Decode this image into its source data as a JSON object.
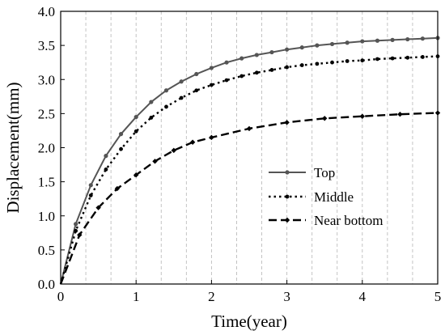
{
  "chart_data": {
    "type": "line",
    "title": "",
    "xlabel": "Time(year)",
    "ylabel": "Displacement(mm)",
    "xlim": [
      0,
      5
    ],
    "ylim": [
      0,
      4
    ],
    "xticks": [
      "0",
      "1",
      "2",
      "3",
      "4",
      "5"
    ],
    "yticks": [
      "0.0",
      "0.5",
      "1.0",
      "1.5",
      "2.0",
      "2.5",
      "3.0",
      "3.5",
      "4.0"
    ],
    "grid": "vertical dashed",
    "legend_position": "center-right",
    "series": [
      {
        "name": "Top",
        "line_style": "solid",
        "color": "#555555",
        "x": [
          0,
          0.2,
          0.4,
          0.6,
          0.8,
          1.0,
          1.2,
          1.4,
          1.6,
          1.8,
          2.0,
          2.2,
          2.4,
          2.6,
          2.8,
          3.0,
          3.2,
          3.4,
          3.6,
          3.8,
          4.0,
          4.2,
          4.4,
          4.6,
          4.8,
          5.0
        ],
        "y": [
          0,
          0.88,
          1.45,
          1.88,
          2.2,
          2.45,
          2.67,
          2.84,
          2.97,
          3.08,
          3.17,
          3.25,
          3.31,
          3.36,
          3.4,
          3.44,
          3.47,
          3.5,
          3.52,
          3.54,
          3.56,
          3.57,
          3.58,
          3.59,
          3.6,
          3.61
        ]
      },
      {
        "name": "Middle",
        "line_style": "dotted",
        "color": "#000000",
        "x": [
          0,
          0.2,
          0.4,
          0.6,
          0.8,
          1.0,
          1.2,
          1.4,
          1.6,
          1.8,
          2.0,
          2.2,
          2.4,
          2.6,
          2.8,
          3.0,
          3.2,
          3.4,
          3.6,
          3.8,
          4.0,
          4.2,
          4.4,
          4.6,
          4.8,
          5.0
        ],
        "y": [
          0,
          0.78,
          1.3,
          1.68,
          1.98,
          2.24,
          2.44,
          2.6,
          2.73,
          2.84,
          2.92,
          2.99,
          3.05,
          3.1,
          3.14,
          3.18,
          3.21,
          3.23,
          3.25,
          3.27,
          3.28,
          3.3,
          3.31,
          3.32,
          3.33,
          3.34
        ]
      },
      {
        "name": "Near bottom",
        "line_style": "dashed",
        "color": "#000000",
        "x": [
          0,
          0.25,
          0.5,
          0.75,
          1.0,
          1.25,
          1.5,
          1.75,
          2.0,
          2.5,
          3.0,
          3.5,
          4.0,
          4.5,
          5.0
        ],
        "y": [
          0,
          0.72,
          1.12,
          1.4,
          1.6,
          1.8,
          1.96,
          2.08,
          2.15,
          2.28,
          2.37,
          2.43,
          2.46,
          2.49,
          2.51
        ]
      }
    ]
  }
}
